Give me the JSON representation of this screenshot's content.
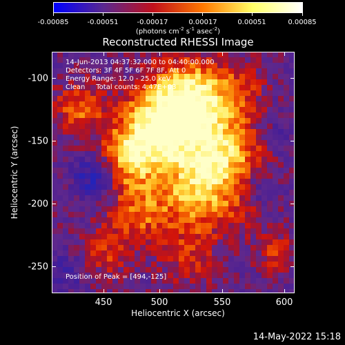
{
  "colorbar": {
    "labels": [
      "-0.00085",
      "-0.00051",
      "-0.00017",
      "0.00017",
      "0.00051",
      "0.00085"
    ],
    "units_prefix": "(photons cm",
    "units_exp1": "-2",
    "units_mid1": " s",
    "units_exp2": "-1",
    "units_mid2": " asec",
    "units_exp3": "-2",
    "units_suffix": ")",
    "colors": [
      "#0000ff",
      "#5a2890",
      "#c0101c",
      "#ff7800",
      "#ffff66",
      "#ffffff"
    ]
  },
  "plot": {
    "title": "Reconstructed RHESSI Image",
    "xlabel": "Heliocentric X (arcsec)",
    "ylabel": "Heliocentric Y (arcsec)",
    "xticks": [
      "450",
      "500",
      "550",
      "600"
    ],
    "yticks": [
      "-100",
      "-150",
      "-200",
      "-250"
    ],
    "xlim": [
      414,
      608
    ],
    "ylim": [
      -275,
      -82
    ]
  },
  "annotations": {
    "time": "14-Jun-2013 04:37:32.000 to 04:40:00.000",
    "detectors": "Detectors: 3F 4F 5F 6F 7F 8F, Att 0",
    "energy": "Energy Range: 12.0 - 25.0 keV",
    "clean": "Clean     Total counts: 4.47E+03",
    "peak": "Position of Peak = [494,-125]"
  },
  "footer": {
    "date": "14-May-2022 15:18"
  }
}
